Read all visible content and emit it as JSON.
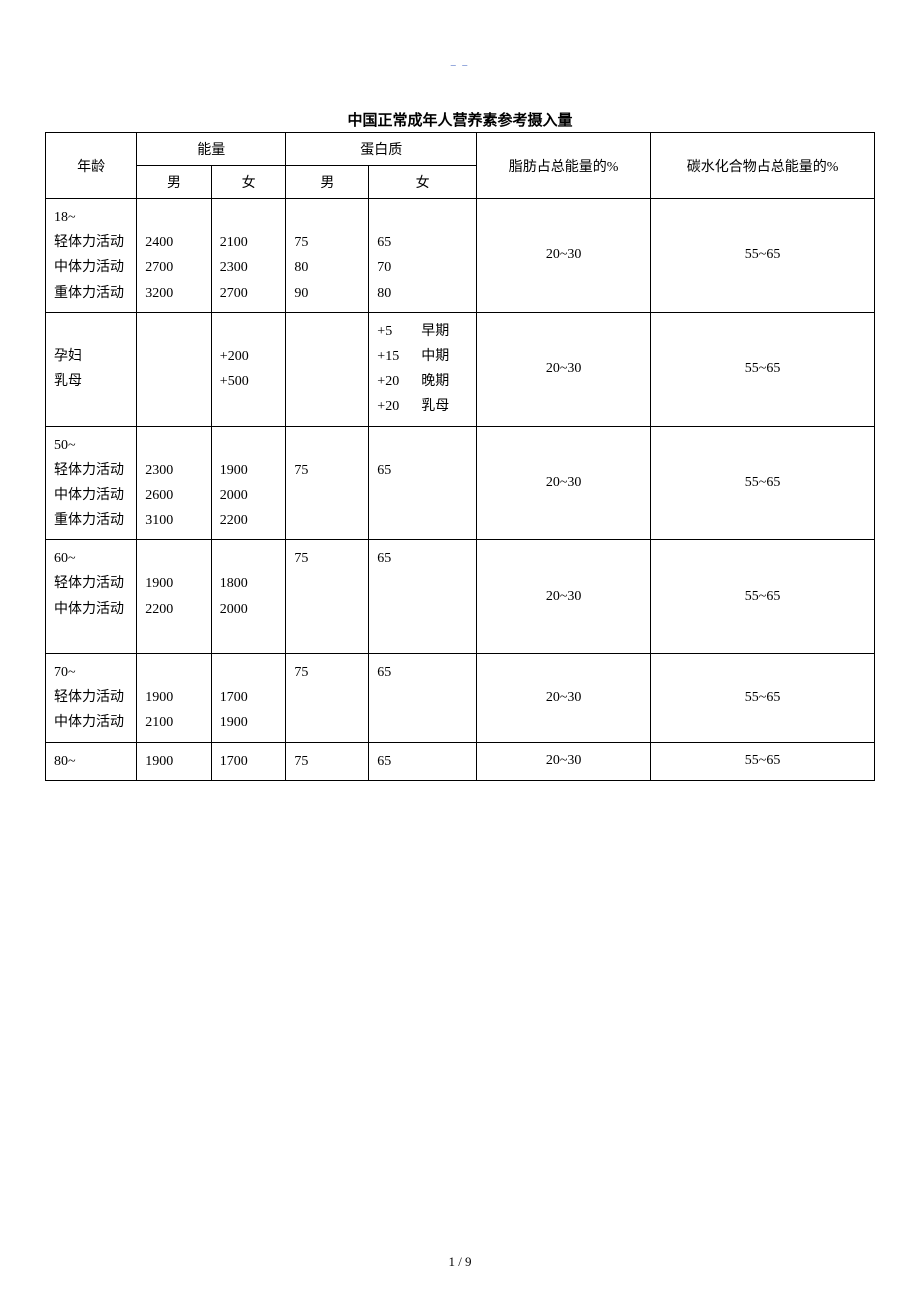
{
  "top_mark": "– –",
  "title": "中国正常成年人营养素参考摄入量",
  "page_num": "1 / 9",
  "headers": {
    "age": "年龄",
    "energy": "能量",
    "protein": "蛋白质",
    "fat": "脂肪占总能量的%",
    "carb": "碳水化合物占总能量的%",
    "male": "男",
    "female": "女"
  },
  "groups": [
    {
      "age_lines": [
        "18~",
        "轻体力活动",
        "中体力活动",
        "重体力活动"
      ],
      "energy_m": [
        "",
        "2400",
        "2700",
        "3200"
      ],
      "energy_f": [
        "",
        "2100",
        "2300",
        "2700"
      ],
      "protein_m": [
        "",
        "75",
        "80",
        "90"
      ],
      "protein_f_plain": [
        "",
        "65",
        "70",
        "80"
      ],
      "fat": "20~30",
      "carb": "55~65"
    },
    {
      "age_lines": [
        "",
        "孕妇",
        "乳母"
      ],
      "energy_m": [],
      "energy_f": [
        "",
        "+200",
        "+500"
      ],
      "protein_m": [],
      "protein_f_pairs": [
        [
          "+5",
          "早期"
        ],
        [
          "+15",
          "中期"
        ],
        [
          "+20",
          "晚期"
        ],
        [
          "+20",
          "乳母"
        ]
      ],
      "fat": "20~30",
      "carb": "55~65"
    },
    {
      "age_lines": [
        "50~",
        "轻体力活动",
        "中体力活动",
        "重体力活动"
      ],
      "energy_m": [
        "",
        "2300",
        "2600",
        "3100"
      ],
      "energy_f": [
        "",
        "1900",
        "2000",
        "2200"
      ],
      "protein_m": [
        "",
        "75"
      ],
      "protein_f_plain": [
        "",
        "65"
      ],
      "fat": "20~30",
      "carb": "55~65"
    },
    {
      "age_lines": [
        "60~",
        "轻体力活动",
        "中体力活动",
        ""
      ],
      "energy_m": [
        "",
        "1900",
        "2200"
      ],
      "energy_f": [
        "",
        "1800",
        "2000"
      ],
      "protein_m": [
        "75"
      ],
      "protein_f_plain": [
        "65"
      ],
      "fat": "20~30",
      "carb": "55~65"
    },
    {
      "age_lines": [
        "70~",
        "轻体力活动",
        "中体力活动"
      ],
      "energy_m": [
        "",
        "1900",
        "2100"
      ],
      "energy_f": [
        "",
        "1700",
        "1900"
      ],
      "protein_m": [
        "75"
      ],
      "protein_f_plain": [
        "65"
      ],
      "fat": "20~30",
      "carb": "55~65"
    },
    {
      "age_lines": [
        "80~"
      ],
      "energy_m": [
        "1900"
      ],
      "energy_f": [
        "1700"
      ],
      "protein_m": [
        "75"
      ],
      "protein_f_plain": [
        "65"
      ],
      "fat": "20~30",
      "carb": "55~65",
      "single_row": true
    }
  ]
}
